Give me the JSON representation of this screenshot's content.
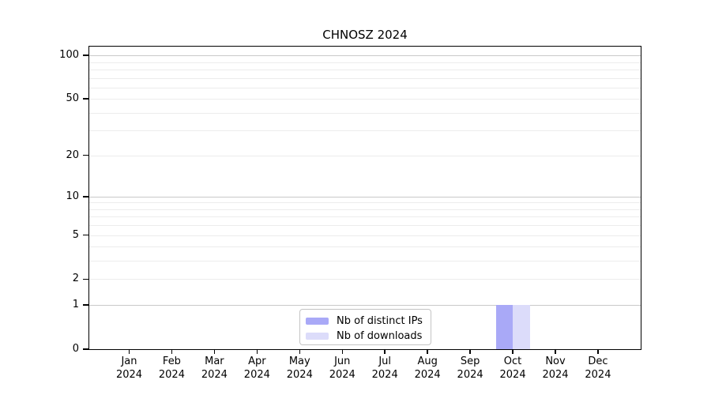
{
  "figure": {
    "title": "CHNOSZ 2024"
  },
  "chart_data": {
    "type": "bar",
    "title": "CHNOSZ 2024",
    "x_categories": [
      "Jan",
      "Feb",
      "Mar",
      "Apr",
      "May",
      "Jun",
      "Jul",
      "Aug",
      "Sep",
      "Oct",
      "Nov",
      "Dec"
    ],
    "x_year_label": "2024",
    "series": [
      {
        "name": "Nb of distinct IPs",
        "color": "#a9a9f7",
        "values": [
          0,
          0,
          0,
          0,
          0,
          0,
          0,
          0,
          0,
          1,
          0,
          0
        ]
      },
      {
        "name": "Nb of downloads",
        "color": "#dcdcfa",
        "values": [
          0,
          0,
          0,
          0,
          0,
          0,
          0,
          0,
          0,
          1,
          0,
          0
        ]
      }
    ],
    "y_scale": "log1p",
    "ylim": [
      0,
      115
    ],
    "y_ticks": [
      0,
      1,
      2,
      5,
      10,
      20,
      50,
      100
    ],
    "y_major_gridlines": [
      1,
      10,
      100
    ],
    "y_minor_gridlines": [
      2,
      3,
      4,
      5,
      6,
      7,
      8,
      9,
      20,
      30,
      40,
      50,
      60,
      70,
      80,
      90
    ],
    "grid": true,
    "legend_position": "bottom-center",
    "colors": {
      "minor_grid": "#ececec",
      "major_grid": "#c9c9c9",
      "axis": "#000000",
      "background": "#ffffff"
    }
  }
}
